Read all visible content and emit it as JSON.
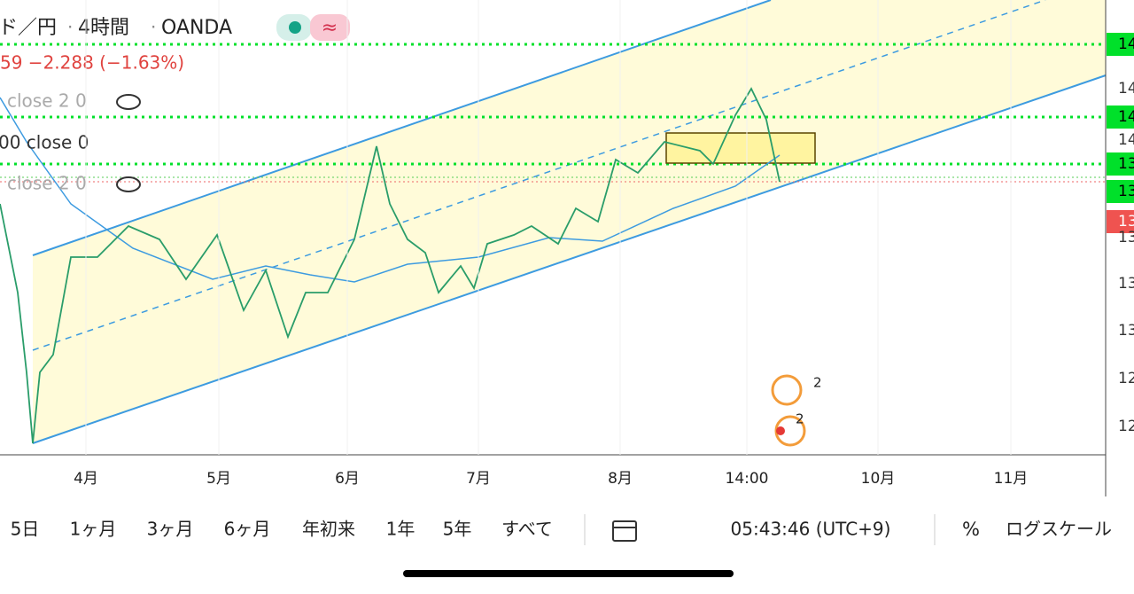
{
  "header": {
    "symbol": "ド／円",
    "interval": "4時間",
    "source": "OANDA",
    "icon": "≈",
    "change": "59  −2.288 (−1.63%)"
  },
  "legend": [
    "close 2 0",
    "00 close 0",
    "close 2 0"
  ],
  "price_axis": [
    "14",
    "14",
    "14",
    "14",
    "13",
    "13",
    "13",
    "13",
    "13",
    "13",
    "12",
    "12"
  ],
  "time_axis": [
    "4月",
    "5月",
    "6月",
    "7月",
    "8月",
    "14:00",
    "10月",
    "11月"
  ],
  "events": [
    "2",
    "2"
  ],
  "toolbar": {
    "ranges": [
      "5日",
      "1ヶ月",
      "3ヶ月",
      "6ヶ月",
      "年初来",
      "1年",
      "5年",
      "すべて"
    ],
    "clock": "05:43:46 (UTC+9)",
    "percent": "%",
    "log": "ログスケール"
  }
}
